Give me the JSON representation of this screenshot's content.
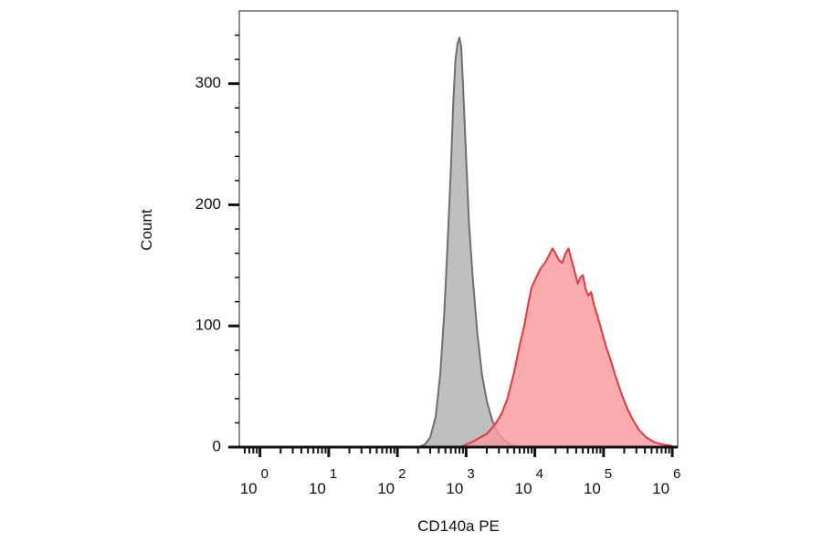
{
  "chart_data": {
    "type": "area",
    "title": "",
    "xlabel": "CD140a PE",
    "ylabel": "Count",
    "x_scale": "log",
    "xlim": [
      0.5,
      1200000
    ],
    "ylim": [
      0,
      360
    ],
    "grid": false,
    "legend": "none",
    "x_ticks": [
      {
        "base": "10",
        "exp": "0",
        "value": 1
      },
      {
        "base": "10",
        "exp": "1",
        "value": 10
      },
      {
        "base": "10",
        "exp": "2",
        "value": 100
      },
      {
        "base": "10",
        "exp": "3",
        "value": 1000
      },
      {
        "base": "10",
        "exp": "4",
        "value": 10000
      },
      {
        "base": "10",
        "exp": "5",
        "value": 100000
      },
      {
        "base": "10",
        "exp": "6",
        "value": 1000000
      }
    ],
    "y_ticks": [
      {
        "label": "0",
        "value": 0
      },
      {
        "label": "100",
        "value": 100
      },
      {
        "label": "200",
        "value": 200
      },
      {
        "label": "300",
        "value": 300
      }
    ],
    "series": [
      {
        "fill": "#bfbfbf",
        "stroke": "#6e6e6e",
        "points": [
          [
            200,
            0
          ],
          [
            250,
            2
          ],
          [
            300,
            8
          ],
          [
            360,
            25
          ],
          [
            420,
            60
          ],
          [
            480,
            110
          ],
          [
            540,
            170
          ],
          [
            600,
            230
          ],
          [
            650,
            285
          ],
          [
            700,
            320
          ],
          [
            750,
            333
          ],
          [
            800,
            338
          ],
          [
            850,
            330
          ],
          [
            900,
            300
          ],
          [
            1000,
            240
          ],
          [
            1100,
            185
          ],
          [
            1250,
            140
          ],
          [
            1450,
            95
          ],
          [
            1700,
            60
          ],
          [
            2000,
            38
          ],
          [
            2400,
            22
          ],
          [
            2900,
            12
          ],
          [
            3500,
            6
          ],
          [
            4500,
            2
          ],
          [
            6000,
            0
          ]
        ]
      },
      {
        "fill": "#f79a9c",
        "stroke": "#e8363a",
        "points": [
          [
            800,
            0
          ],
          [
            1000,
            2
          ],
          [
            1300,
            5
          ],
          [
            1600,
            8
          ],
          [
            2000,
            11
          ],
          [
            2400,
            16
          ],
          [
            2800,
            21
          ],
          [
            3300,
            28
          ],
          [
            4000,
            40
          ],
          [
            5000,
            62
          ],
          [
            6000,
            84
          ],
          [
            7000,
            100
          ],
          [
            8000,
            118
          ],
          [
            9000,
            132
          ],
          [
            10500,
            140
          ],
          [
            12000,
            147
          ],
          [
            14000,
            152
          ],
          [
            16000,
            158
          ],
          [
            18000,
            164
          ],
          [
            20000,
            160
          ],
          [
            22000,
            155
          ],
          [
            25000,
            152
          ],
          [
            28000,
            160
          ],
          [
            31000,
            164
          ],
          [
            34000,
            155
          ],
          [
            38000,
            145
          ],
          [
            42000,
            135
          ],
          [
            46000,
            140
          ],
          [
            50000,
            142
          ],
          [
            55000,
            130
          ],
          [
            60000,
            125
          ],
          [
            66000,
            128
          ],
          [
            72000,
            118
          ],
          [
            82000,
            108
          ],
          [
            95000,
            95
          ],
          [
            110000,
            82
          ],
          [
            130000,
            70
          ],
          [
            150000,
            58
          ],
          [
            180000,
            45
          ],
          [
            220000,
            32
          ],
          [
            270000,
            22
          ],
          [
            330000,
            14
          ],
          [
            420000,
            8
          ],
          [
            550000,
            4
          ],
          [
            750000,
            2
          ],
          [
            1000000,
            1
          ]
        ]
      }
    ]
  }
}
